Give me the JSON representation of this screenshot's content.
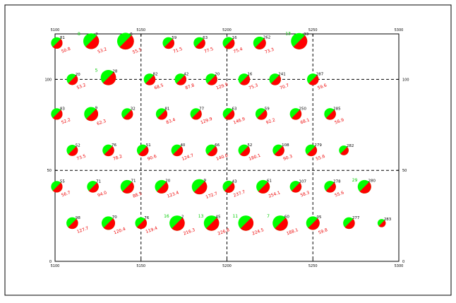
{
  "chart_data": {
    "type": "scatter",
    "title": "",
    "xlabel": "",
    "ylabel": "",
    "xlim": [
      5100,
      5300
    ],
    "ylim": [
      0,
      125
    ],
    "x_ticks": [
      "5100",
      "5150",
      "5200",
      "5250",
      "5300"
    ],
    "y_ticks": [
      "0",
      "50",
      "100"
    ],
    "grid": "dashed at x = 5150, 5200, 5250 and y = 50, 100",
    "colors": {
      "green": "#00ff00",
      "red": "#ff0000",
      "frame": "#000000"
    },
    "series": [
      {
        "x": 5101,
        "y": 120,
        "size": 0.45,
        "green_share": 0.5,
        "id": "81",
        "green_label": "",
        "red_label": "50.8"
      },
      {
        "x": 5121,
        "y": 121,
        "size": 0.62,
        "green_share": 0.55,
        "id": "7",
        "green_label": "8",
        "red_label": "53.2"
      },
      {
        "x": 5141,
        "y": 121,
        "size": 0.66,
        "green_share": 0.5,
        "id": "5",
        "green_label": "",
        "red_label": "55.5"
      },
      {
        "x": 5166,
        "y": 120,
        "size": 0.46,
        "green_share": 0.5,
        "id": "59",
        "green_label": "",
        "red_label": "71.5"
      },
      {
        "x": 5184,
        "y": 120,
        "size": 0.46,
        "green_share": 0.5,
        "id": "63",
        "green_label": "",
        "red_label": "77.5"
      },
      {
        "x": 5201,
        "y": 120,
        "size": 0.47,
        "green_share": 0.5,
        "id": "16",
        "green_label": "",
        "red_label": "75.4"
      },
      {
        "x": 5219,
        "y": 120,
        "size": 0.5,
        "green_share": 0.5,
        "id": "262",
        "green_label": "",
        "red_label": "73.3"
      },
      {
        "x": 5242,
        "y": 121,
        "size": 0.64,
        "green_share": 0.6,
        "id": "33",
        "green_label": "13",
        "red_label": ""
      },
      {
        "x": 5110,
        "y": 100,
        "size": 0.44,
        "green_share": 0.5,
        "id": "20",
        "green_label": "",
        "red_label": "53.2"
      },
      {
        "x": 5131,
        "y": 101,
        "size": 0.6,
        "green_share": 0.55,
        "id": "28",
        "green_label": "5",
        "red_label": ""
      },
      {
        "x": 5155,
        "y": 100,
        "size": 0.46,
        "green_share": 0.5,
        "id": "82",
        "green_label": "",
        "red_label": "68.5"
      },
      {
        "x": 5173,
        "y": 100,
        "size": 0.46,
        "green_share": 0.5,
        "id": "42",
        "green_label": "",
        "red_label": "87.8"
      },
      {
        "x": 5191,
        "y": 100,
        "size": 0.46,
        "green_share": 0.5,
        "id": "20",
        "green_label": "",
        "red_label": "129.9"
      },
      {
        "x": 5210,
        "y": 100,
        "size": 0.46,
        "green_share": 0.5,
        "id": "16",
        "green_label": "",
        "red_label": "75.3"
      },
      {
        "x": 5228,
        "y": 100,
        "size": 0.46,
        "green_share": 0.5,
        "id": "241",
        "green_label": "",
        "red_label": "70.7"
      },
      {
        "x": 5250,
        "y": 100,
        "size": 0.46,
        "green_share": 0.5,
        "id": "287",
        "green_label": "",
        "red_label": "59.6"
      },
      {
        "x": 5101,
        "y": 81,
        "size": 0.45,
        "green_share": 0.5,
        "id": "83",
        "green_label": "",
        "red_label": "52.2"
      },
      {
        "x": 5121,
        "y": 81,
        "size": 0.55,
        "green_share": 0.55,
        "id": "9",
        "green_label": "",
        "red_label": "62.3"
      },
      {
        "x": 5142,
        "y": 81,
        "size": 0.45,
        "green_share": 0.5,
        "id": "32",
        "green_label": "",
        "red_label": ""
      },
      {
        "x": 5162,
        "y": 81,
        "size": 0.45,
        "green_share": 0.5,
        "id": "81",
        "green_label": "",
        "red_label": "83.4"
      },
      {
        "x": 5182,
        "y": 81,
        "size": 0.45,
        "green_share": 0.5,
        "id": "77",
        "green_label": "",
        "red_label": "129.9"
      },
      {
        "x": 5201,
        "y": 81,
        "size": 0.46,
        "green_share": 0.5,
        "id": "63",
        "green_label": "",
        "red_label": "146.9"
      },
      {
        "x": 5220,
        "y": 81,
        "size": 0.46,
        "green_share": 0.5,
        "id": "59",
        "green_label": "",
        "red_label": "92.2"
      },
      {
        "x": 5240,
        "y": 81,
        "size": 0.46,
        "green_share": 0.5,
        "id": "250",
        "green_label": "",
        "red_label": "68.1"
      },
      {
        "x": 5260,
        "y": 81,
        "size": 0.46,
        "green_share": 0.5,
        "id": "285",
        "green_label": "",
        "red_label": "56.9"
      },
      {
        "x": 5110,
        "y": 61,
        "size": 0.44,
        "green_share": 0.5,
        "id": "52",
        "green_label": "",
        "red_label": "73.5"
      },
      {
        "x": 5131,
        "y": 61,
        "size": 0.46,
        "green_share": 0.5,
        "id": "76",
        "green_label": "",
        "red_label": "78.2"
      },
      {
        "x": 5151,
        "y": 61,
        "size": 0.46,
        "green_share": 0.5,
        "id": "51",
        "green_label": "",
        "red_label": "90.6"
      },
      {
        "x": 5171,
        "y": 61,
        "size": 0.46,
        "green_share": 0.5,
        "id": "40",
        "green_label": "",
        "red_label": "124.7"
      },
      {
        "x": 5191,
        "y": 61,
        "size": 0.46,
        "green_share": 0.5,
        "id": "66",
        "green_label": "",
        "red_label": "140.0"
      },
      {
        "x": 5210,
        "y": 61,
        "size": 0.46,
        "green_share": 0.5,
        "id": "52",
        "green_label": "",
        "red_label": "180.1"
      },
      {
        "x": 5230,
        "y": 61,
        "size": 0.46,
        "green_share": 0.5,
        "id": "108",
        "green_label": "",
        "red_label": "90.3"
      },
      {
        "x": 5249,
        "y": 61,
        "size": 0.46,
        "green_share": 0.5,
        "id": "279",
        "green_label": "",
        "red_label": "55.6"
      },
      {
        "x": 5268,
        "y": 61,
        "size": 0.38,
        "green_share": 0.5,
        "id": "282",
        "green_label": "",
        "red_label": ""
      },
      {
        "x": 5101,
        "y": 41,
        "size": 0.45,
        "green_share": 0.5,
        "id": "55",
        "green_label": "",
        "red_label": "56.7"
      },
      {
        "x": 5122,
        "y": 41,
        "size": 0.46,
        "green_share": 0.5,
        "id": "71",
        "green_label": "",
        "red_label": "94.0"
      },
      {
        "x": 5142,
        "y": 41,
        "size": 0.53,
        "green_share": 0.5,
        "id": "71",
        "green_label": "",
        "red_label": "88.5"
      },
      {
        "x": 5162,
        "y": 41,
        "size": 0.53,
        "green_share": 0.5,
        "id": "20",
        "green_label": "",
        "red_label": "123.4"
      },
      {
        "x": 5184,
        "y": 41,
        "size": 0.6,
        "green_share": 0.55,
        "id": "9",
        "green_label": "",
        "red_label": "172.7"
      },
      {
        "x": 5201,
        "y": 41,
        "size": 0.47,
        "green_share": 0.5,
        "id": "43",
        "green_label": "",
        "red_label": "237.7"
      },
      {
        "x": 5221,
        "y": 41,
        "size": 0.53,
        "green_share": 0.5,
        "id": "61",
        "green_label": "",
        "red_label": "254.1"
      },
      {
        "x": 5240,
        "y": 41,
        "size": 0.46,
        "green_share": 0.5,
        "id": "107",
        "green_label": "",
        "red_label": "58.3"
      },
      {
        "x": 5260,
        "y": 41,
        "size": 0.46,
        "green_share": 0.5,
        "id": "278",
        "green_label": "",
        "red_label": "55.6"
      },
      {
        "x": 5280,
        "y": 41,
        "size": 0.53,
        "green_share": 0.55,
        "id": "280",
        "green_label": "29",
        "red_label": ""
      },
      {
        "x": 5110,
        "y": 21,
        "size": 0.46,
        "green_share": 0.5,
        "id": "98",
        "green_label": "",
        "red_label": "127.7"
      },
      {
        "x": 5131,
        "y": 21,
        "size": 0.53,
        "green_share": 0.5,
        "id": "70",
        "green_label": "",
        "red_label": "120.4"
      },
      {
        "x": 5150,
        "y": 21,
        "size": 0.46,
        "green_share": 0.5,
        "id": "76",
        "green_label": "",
        "red_label": "119.4"
      },
      {
        "x": 5171,
        "y": 21,
        "size": 0.6,
        "green_share": 0.55,
        "id": "2",
        "green_label": "16",
        "red_label": "216.3"
      },
      {
        "x": 5191,
        "y": 21,
        "size": 0.6,
        "green_share": 0.55,
        "id": "45",
        "green_label": "13",
        "red_label": "226.8"
      },
      {
        "x": 5211,
        "y": 21,
        "size": 0.6,
        "green_share": 0.55,
        "id": "",
        "green_label": "11",
        "red_label": "224.5"
      },
      {
        "x": 5231,
        "y": 21,
        "size": 0.6,
        "green_share": 0.55,
        "id": "60",
        "green_label": "7",
        "red_label": "188.1"
      },
      {
        "x": 5250,
        "y": 21,
        "size": 0.53,
        "green_share": 0.55,
        "id": "05",
        "green_label": "",
        "red_label": "59.8"
      },
      {
        "x": 5271,
        "y": 21,
        "size": 0.46,
        "green_share": 0.5,
        "id": "277",
        "green_label": "",
        "red_label": ""
      },
      {
        "x": 5290,
        "y": 21,
        "size": 0.32,
        "green_share": 0.5,
        "id": "283",
        "green_label": "",
        "red_label": ""
      }
    ]
  }
}
